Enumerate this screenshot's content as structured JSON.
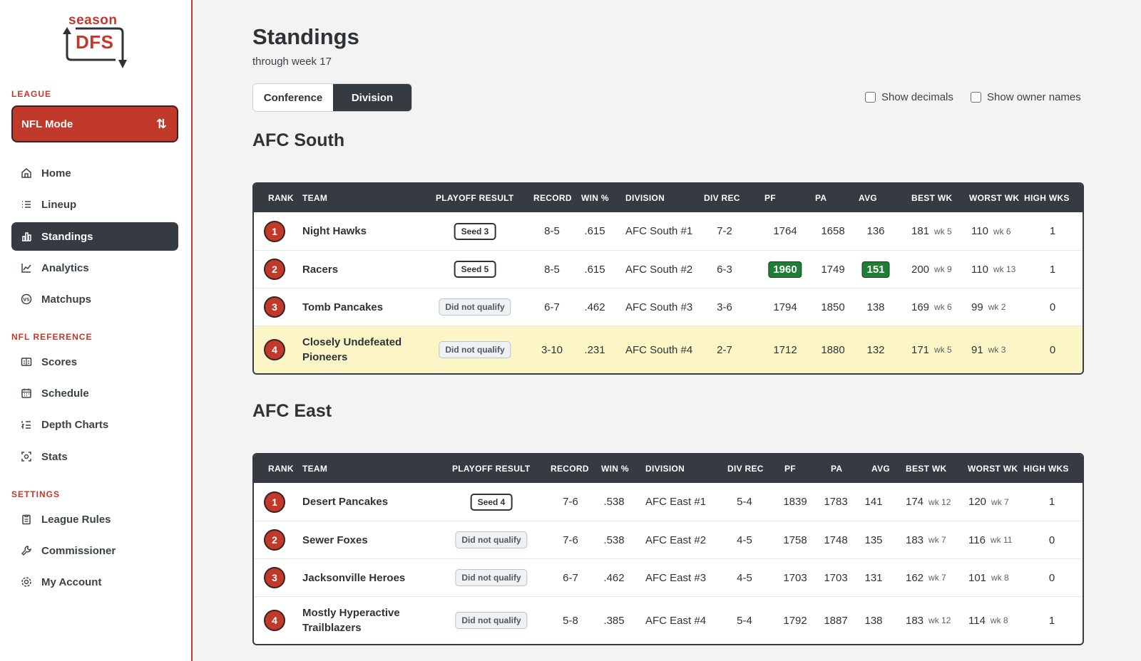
{
  "brand": {
    "top": "season",
    "main": "DFS"
  },
  "sidebar": {
    "league_label": "LEAGUE",
    "mode_label": "NFL Mode",
    "mode_icon": "swap-arrows-icon",
    "nav_league": [
      {
        "label": "Home",
        "icon": "home-icon"
      },
      {
        "label": "Lineup",
        "icon": "list-icon"
      },
      {
        "label": "Standings",
        "icon": "bar-chart-icon",
        "active": true
      },
      {
        "label": "Analytics",
        "icon": "line-chart-icon"
      },
      {
        "label": "Matchups",
        "icon": "versus-icon"
      }
    ],
    "reference_label": "NFL REFERENCE",
    "nav_reference": [
      {
        "label": "Scores",
        "icon": "scoreboard-icon"
      },
      {
        "label": "Schedule",
        "icon": "calendar-icon"
      },
      {
        "label": "Depth Charts",
        "icon": "numbered-list-icon"
      },
      {
        "label": "Stats",
        "icon": "scan-icon"
      }
    ],
    "settings_label": "SETTINGS",
    "nav_settings": [
      {
        "label": "League Rules",
        "icon": "clipboard-icon"
      },
      {
        "label": "Commissioner",
        "icon": "wrench-icon"
      },
      {
        "label": "My Account",
        "icon": "gear-icon"
      }
    ]
  },
  "page": {
    "title": "Standings",
    "subtitle": "through week 17",
    "toggle": {
      "conference": "Conference",
      "division": "Division",
      "selected": "Division"
    },
    "show_decimals": "Show decimals",
    "show_owner_names": "Show owner names"
  },
  "columns": [
    "RANK",
    "TEAM",
    "PLAYOFF RESULT",
    "RECORD",
    "WIN %",
    "DIVISION",
    "DIV REC",
    "PF",
    "PA",
    "AVG",
    "BEST WK",
    "WORST WK",
    "HIGH WKS"
  ],
  "colors": {
    "accent": "#c0392b",
    "dark": "#353b40",
    "highlight_green": "#1e7e34",
    "row_highlight": "#fcf6c6"
  },
  "divisions": [
    {
      "name": "AFC South",
      "rows": [
        {
          "rank": "1",
          "team": "Night Hawks",
          "playoff": "Seed 3",
          "playoff_type": "seed",
          "record": "8-5",
          "win_pct": ".615",
          "division": "AFC South #1",
          "div_rec": "7-2",
          "pf": "1764",
          "pa": "1658",
          "avg": "136",
          "best": "181",
          "best_wk": "wk 5",
          "worst": "110",
          "worst_wk": "wk 6",
          "high_wks": "1"
        },
        {
          "rank": "2",
          "team": "Racers",
          "playoff": "Seed 5",
          "playoff_type": "seed",
          "record": "8-5",
          "win_pct": ".615",
          "division": "AFC South #2",
          "div_rec": "6-3",
          "pf": "1960",
          "pf_hi": true,
          "pa": "1749",
          "avg": "151",
          "avg_hi": true,
          "best": "200",
          "best_wk": "wk 9",
          "worst": "110",
          "worst_wk": "wk 13",
          "high_wks": "1"
        },
        {
          "rank": "3",
          "team": "Tomb Pancakes",
          "playoff": "Did not qualify",
          "playoff_type": "dnq",
          "record": "6-7",
          "win_pct": ".462",
          "division": "AFC South #3",
          "div_rec": "3-6",
          "pf": "1794",
          "pa": "1850",
          "avg": "138",
          "best": "169",
          "best_wk": "wk 6",
          "worst": "99",
          "worst_wk": "wk 2",
          "high_wks": "0"
        },
        {
          "rank": "4",
          "team": "Closely Undefeated Pioneers",
          "playoff": "Did not qualify",
          "playoff_type": "dnq",
          "record": "3-10",
          "win_pct": ".231",
          "division": "AFC South #4",
          "div_rec": "2-7",
          "pf": "1712",
          "pa": "1880",
          "avg": "132",
          "best": "171",
          "best_wk": "wk 5",
          "worst": "91",
          "worst_wk": "wk 3",
          "high_wks": "0",
          "highlight": true
        }
      ]
    },
    {
      "name": "AFC East",
      "rows": [
        {
          "rank": "1",
          "team": "Desert Pancakes",
          "playoff": "Seed 4",
          "playoff_type": "seed",
          "record": "7-6",
          "win_pct": ".538",
          "division": "AFC East #1",
          "div_rec": "5-4",
          "pf": "1839",
          "pa": "1783",
          "avg": "141",
          "best": "174",
          "best_wk": "wk 12",
          "worst": "120",
          "worst_wk": "wk 7",
          "high_wks": "1"
        },
        {
          "rank": "2",
          "team": "Sewer Foxes",
          "playoff": "Did not qualify",
          "playoff_type": "dnq",
          "record": "7-6",
          "win_pct": ".538",
          "division": "AFC East #2",
          "div_rec": "4-5",
          "pf": "1758",
          "pa": "1748",
          "avg": "135",
          "best": "183",
          "best_wk": "wk 7",
          "worst": "116",
          "worst_wk": "wk 11",
          "high_wks": "0"
        },
        {
          "rank": "3",
          "team": "Jacksonville Heroes",
          "playoff": "Did not qualify",
          "playoff_type": "dnq",
          "record": "6-7",
          "win_pct": ".462",
          "division": "AFC East #3",
          "div_rec": "4-5",
          "pf": "1703",
          "pa": "1703",
          "avg": "131",
          "best": "162",
          "best_wk": "wk 7",
          "worst": "101",
          "worst_wk": "wk 8",
          "high_wks": "0"
        },
        {
          "rank": "4",
          "team": "Mostly Hyperactive Trailblazers",
          "playoff": "Did not qualify",
          "playoff_type": "dnq",
          "record": "5-8",
          "win_pct": ".385",
          "division": "AFC East #4",
          "div_rec": "5-4",
          "pf": "1792",
          "pa": "1887",
          "avg": "138",
          "best": "183",
          "best_wk": "wk 12",
          "worst": "114",
          "worst_wk": "wk 8",
          "high_wks": "1"
        }
      ]
    }
  ]
}
